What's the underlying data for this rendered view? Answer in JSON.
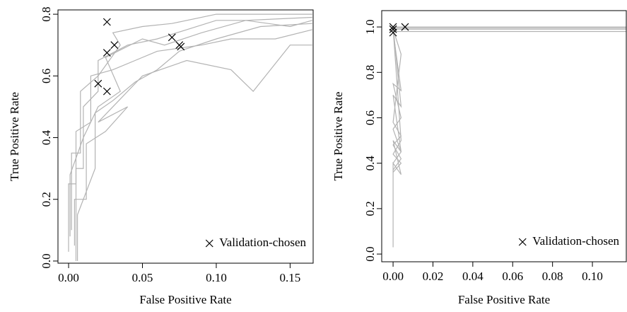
{
  "chart_data": [
    {
      "type": "line",
      "xlabel": "False Positive Rate",
      "ylabel": "True Positive Rate",
      "xlim": [
        -0.0072,
        0.1656
      ],
      "ylim": [
        -0.007,
        0.814
      ],
      "xticks": [
        {
          "value": 0,
          "label": "0.00"
        },
        0.05,
        {
          "value": 0.1,
          "label": "0.10"
        },
        0.15
      ],
      "yticks": [
        {
          "value": 0,
          "label": "0.0"
        },
        0.2,
        0.4,
        0.6,
        0.8
      ],
      "legend": "bottom-right",
      "series": [
        {
          "color": "#b3b3b3",
          "x": [
            0.005,
            0.005,
            0.01,
            0.01,
            0.02,
            0.02,
            0.04,
            0.06,
            0.08,
            0.1,
            0.12,
            0.165
          ],
          "y": [
            0,
            0.3,
            0.3,
            0.5,
            0.55,
            0.65,
            0.7,
            0.72,
            0.75,
            0.78,
            0.78,
            0.79
          ]
        },
        {
          "color": "#b3b3b3",
          "x": [
            0,
            0,
            0.005,
            0.005,
            0.015,
            0.015,
            0.03,
            0.045,
            0.06,
            0.09,
            0.11,
            0.14,
            0.165
          ],
          "y": [
            0.03,
            0.25,
            0.25,
            0.42,
            0.45,
            0.6,
            0.62,
            0.65,
            0.68,
            0.7,
            0.72,
            0.72,
            0.75
          ]
        },
        {
          "color": "#b3b3b3",
          "x": [
            0.002,
            0.002,
            0.008,
            0.008,
            0.02,
            0.035,
            0.03,
            0.05,
            0.07,
            0.1,
            0.13,
            0.165
          ],
          "y": [
            0.1,
            0.35,
            0.35,
            0.55,
            0.6,
            0.7,
            0.74,
            0.76,
            0.77,
            0.8,
            0.8,
            0.8
          ]
        },
        {
          "color": "#b3b3b3",
          "x": [
            0.004,
            0.004,
            0.012,
            0.012,
            0.025,
            0.04,
            0.02,
            0.05,
            0.08,
            0.11,
            0.125,
            0.15,
            0.165
          ],
          "y": [
            0.05,
            0.2,
            0.2,
            0.38,
            0.42,
            0.5,
            0.45,
            0.6,
            0.65,
            0.62,
            0.55,
            0.7,
            0.7
          ]
        },
        {
          "color": "#b3b3b3",
          "x": [
            0.006,
            0.006,
            0.018,
            0.018,
            0.03,
            0.045,
            0.06,
            0.075,
            0.1,
            0.13,
            0.165
          ],
          "y": [
            0,
            0.15,
            0.3,
            0.48,
            0.52,
            0.58,
            0.62,
            0.68,
            0.72,
            0.76,
            0.77
          ]
        },
        {
          "color": "#b3b3b3",
          "x": [
            0.001,
            0.001,
            0.01,
            0.02,
            0.035,
            0.025,
            0.05,
            0.065,
            0.09,
            0.12,
            0.15,
            0.165
          ],
          "y": [
            0.08,
            0.28,
            0.4,
            0.5,
            0.55,
            0.66,
            0.72,
            0.7,
            0.74,
            0.78,
            0.76,
            0.78
          ]
        },
        {
          "name": "Validation-chosen",
          "color": "#000000",
          "marker": "x",
          "x": [
            0.026,
            0.031,
            0.026,
            0.02,
            0.026,
            0.07,
            0.075,
            0.076
          ],
          "y": [
            0.775,
            0.7,
            0.675,
            0.575,
            0.55,
            0.725,
            0.7,
            0.695
          ]
        }
      ]
    },
    {
      "type": "line",
      "xlabel": "False Positive Rate",
      "ylabel": "True Positive Rate",
      "xlim": [
        -0.0057,
        0.117
      ],
      "ylim": [
        -0.034,
        1.072
      ],
      "xticks": [
        {
          "value": 0,
          "label": "0.00"
        },
        0.02,
        0.04,
        0.06,
        0.08,
        {
          "value": 0.1,
          "label": "0.10"
        }
      ],
      "yticks": [
        {
          "value": 0,
          "label": "0.0"
        },
        0.2,
        0.4,
        0.6,
        0.8,
        {
          "value": 1,
          "label": "1.0"
        }
      ],
      "legend": "bottom-right",
      "series": [
        {
          "color": "#b3b3b3",
          "x": [
            0,
            0,
            0.004,
            0,
            0.004,
            0,
            0.004,
            0,
            0.117
          ],
          "y": [
            0.03,
            0.4,
            0.35,
            0.5,
            0.45,
            0.7,
            0.65,
            1,
            1
          ]
        },
        {
          "color": "#b3b3b3",
          "x": [
            0,
            0.004,
            0,
            0.004,
            0,
            0.004,
            0,
            0.117
          ],
          "y": [
            0.4,
            0.45,
            0.55,
            0.6,
            0.75,
            0.72,
            0.98,
            0.98
          ]
        },
        {
          "color": "#b3b3b3",
          "x": [
            0,
            0.004,
            0,
            0.004,
            0,
            0.004,
            0,
            0.117
          ],
          "y": [
            0.37,
            0.42,
            0.48,
            0.52,
            0.58,
            0.88,
            0.99,
            0.99
          ]
        },
        {
          "color": "#b3b3b3",
          "x": [
            0,
            0.004,
            0,
            0.004,
            0,
            0.117
          ],
          "y": [
            0.36,
            0.4,
            0.44,
            0.5,
            0.995,
            0.995
          ]
        },
        {
          "name": "Validation-chosen",
          "color": "#000000",
          "marker": "x",
          "x": [
            0,
            0,
            0,
            0.006
          ],
          "y": [
            1,
            0.99,
            0.975,
            1
          ]
        }
      ]
    }
  ]
}
